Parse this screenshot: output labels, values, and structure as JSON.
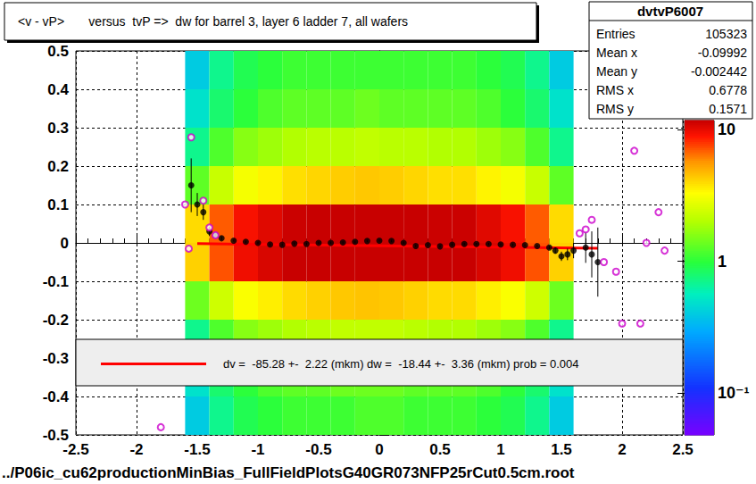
{
  "chart_data": {
    "type": "scatter",
    "title": "<v - vP>       versus  tvP =>  dw for barrel 3, layer 6 ladder 7, all wafers",
    "annotations": [
      "../P06ic_cu62productionMinBias_FullFieldPlotsG40GR073NFP25rCut0.5cm.root"
    ],
    "xlim": [
      -2.5,
      2.5
    ],
    "xticks": [
      -2.5,
      -2,
      -1.5,
      -1,
      -0.5,
      0,
      0.5,
      1,
      1.5,
      2,
      2.5
    ],
    "ylim": [
      -0.5,
      0.5
    ],
    "yticks": [
      -0.5,
      -0.4,
      -0.3,
      -0.2,
      -0.1,
      0,
      0.1,
      0.2,
      0.3,
      0.4,
      0.5
    ],
    "grid": true,
    "legend": "bottom",
    "stats": {
      "title": "dvtvP6007",
      "rows": [
        {
          "label": "Entries",
          "value": 105323
        },
        {
          "label": "Mean x",
          "value": -0.09992
        },
        {
          "label": "Mean y",
          "value": -0.002442
        },
        {
          "label": "RMS x",
          "value": 0.6778
        },
        {
          "label": "RMS y",
          "value": 0.1571
        }
      ]
    },
    "heatmap": {
      "x_edges": [
        -1.6,
        -1.4,
        -1.2,
        -1.0,
        -0.8,
        -0.6,
        -0.4,
        -0.2,
        0,
        0.2,
        0.4,
        0.6,
        0.8,
        1.0,
        1.2,
        1.4,
        1.6
      ],
      "y_edges": [
        -0.5,
        -0.4,
        -0.3,
        -0.2,
        -0.1,
        0,
        0.1,
        0.2,
        0.3,
        0.4,
        0.5
      ],
      "cells": [
        [
          0.4,
          0.7,
          0.9,
          1.0,
          1.1,
          1.1,
          1.1,
          1.2,
          1.2,
          1.1,
          1.1,
          1.1,
          1.0,
          0.9,
          0.7,
          0.4
        ],
        [
          0.5,
          0.8,
          1.0,
          1.2,
          1.3,
          1.3,
          1.4,
          1.4,
          1.4,
          1.3,
          1.3,
          1.3,
          1.2,
          1.0,
          0.8,
          0.5
        ],
        [
          0.7,
          1.2,
          1.6,
          1.8,
          2.0,
          2.1,
          2.2,
          2.2,
          2.2,
          2.1,
          2.0,
          2.0,
          1.8,
          1.6,
          1.2,
          0.7
        ],
        [
          1.4,
          2.4,
          3.2,
          3.6,
          4.0,
          4.2,
          4.4,
          4.5,
          4.4,
          4.2,
          4.0,
          4.0,
          3.6,
          3.2,
          2.4,
          1.4
        ],
        [
          4.2,
          7.2,
          9.6,
          10.8,
          12,
          13,
          14,
          14,
          14,
          13,
          12,
          12,
          10.8,
          9.6,
          7.2,
          4.2
        ],
        [
          4.0,
          7.0,
          9.2,
          10.4,
          11.5,
          12.5,
          13,
          13.5,
          13,
          12.5,
          11.5,
          11.5,
          10.4,
          9.2,
          7.0,
          4.0
        ],
        [
          1.3,
          2.3,
          3.1,
          3.5,
          3.9,
          4.1,
          4.3,
          4.4,
          4.3,
          4.1,
          3.9,
          3.9,
          3.5,
          3.1,
          2.3,
          1.3
        ],
        [
          0.7,
          1.2,
          1.6,
          1.8,
          2.0,
          2.1,
          2.1,
          2.2,
          2.1,
          2.1,
          2.0,
          2.0,
          1.8,
          1.6,
          1.2,
          0.7
        ],
        [
          0.5,
          0.8,
          1.0,
          1.2,
          1.3,
          1.3,
          1.3,
          1.4,
          1.3,
          1.3,
          1.3,
          1.3,
          1.2,
          1.0,
          0.8,
          0.5
        ],
        [
          0.4,
          0.7,
          0.9,
          1.0,
          1.1,
          1.1,
          1.1,
          1.1,
          1.1,
          1.1,
          1.1,
          1.1,
          1.0,
          0.9,
          0.7,
          0.4
        ]
      ],
      "log": true,
      "zlim": [
        0.048,
        11.7
      ],
      "zticks": [
        {
          "value": 0.1,
          "label": "10⁻¹"
        },
        1,
        10
      ]
    },
    "series": [
      {
        "color": "#000000",
        "marker": "circle",
        "x": [
          -1.55,
          -1.5,
          -1.45,
          -1.4,
          -1.35,
          -1.3,
          -1.2,
          -1.1,
          -1.0,
          -0.9,
          -0.8,
          -0.7,
          -0.6,
          -0.5,
          -0.4,
          -0.3,
          -0.2,
          -0.1,
          0,
          0.1,
          0.2,
          0.3,
          0.4,
          0.5,
          0.6,
          0.7,
          0.8,
          0.9,
          1.0,
          1.1,
          1.2,
          1.3,
          1.4,
          1.45,
          1.5,
          1.55,
          1.6,
          1.7,
          1.75,
          1.8
        ],
        "values": [
          0.15,
          0.1,
          0.08,
          0.03,
          0.02,
          0.012,
          0.006,
          0.003,
          0.0,
          -0.004,
          -0.005,
          -0.002,
          -0.003,
          0.0,
          0.0,
          0.001,
          0.003,
          0.005,
          0.006,
          0.005,
          0.0,
          -0.008,
          -0.006,
          -0.009,
          -0.005,
          -0.003,
          -0.003,
          -0.003,
          -0.004,
          -0.005,
          -0.006,
          -0.008,
          -0.012,
          -0.02,
          -0.035,
          -0.03,
          -0.02,
          -0.012,
          -0.03,
          -0.05
        ],
        "errors": [
          0.07,
          0.03,
          0.02,
          0.012,
          0.008,
          0.005,
          0.003,
          0.003,
          0.003,
          0.003,
          0.003,
          0.003,
          0.003,
          0.003,
          0.003,
          0.003,
          0.003,
          0.003,
          0.003,
          0.003,
          0.003,
          0.003,
          0.003,
          0.003,
          0.003,
          0.003,
          0.003,
          0.003,
          0.003,
          0.003,
          0.003,
          0.003,
          0.005,
          0.008,
          0.012,
          0.015,
          0.02,
          0.04,
          0.06,
          0.09
        ]
      },
      {
        "color": "#cc00cc",
        "marker": "open_circle",
        "x": [
          -1.8,
          -1.6,
          -1.57,
          -1.55,
          -1.45,
          -1.4,
          -1.35,
          1.65,
          1.7,
          1.75,
          1.85,
          1.95,
          2.0,
          2.1,
          2.15,
          2.2,
          2.3,
          2.35
        ],
        "values": [
          -0.48,
          0.1,
          -0.015,
          0.275,
          0.11,
          0.04,
          0.02,
          0.025,
          0.035,
          0.06,
          -0.05,
          -0.075,
          -0.21,
          0.24,
          -0.21,
          0.0,
          0.08,
          -0.02
        ]
      },
      {
        "name": "dv =  -85.28 +-  2.22 (mkm) dw =  -18.44 +-  3.36 (mkm) prob = 0.004",
        "type": "line",
        "color": "#ff0000",
        "x": [
          -1.5,
          1.8
        ],
        "values": [
          -0.002,
          -0.014
        ]
      }
    ]
  }
}
